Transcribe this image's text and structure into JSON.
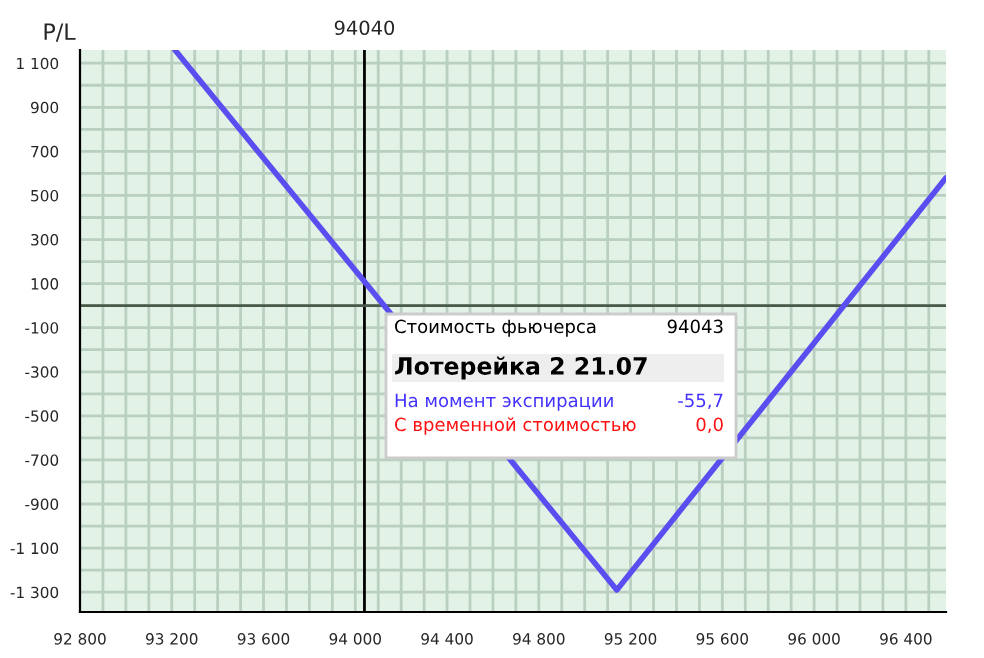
{
  "chart_data": {
    "type": "line",
    "ylabel": "P/L",
    "x": [
      93214,
      95140,
      96575
    ],
    "series": [
      {
        "color": "#5a4ef0",
        "values": [
          1160,
          -1290,
          580
        ]
      }
    ],
    "xlim": [
      92800,
      96575
    ],
    "ylim": [
      -1390,
      1160
    ],
    "xticks": [
      {
        "value": 92800,
        "label": "92 800"
      },
      {
        "value": 93200,
        "label": "93 200"
      },
      {
        "value": 93600,
        "label": "93 600"
      },
      {
        "value": 94000,
        "label": "94 000"
      },
      {
        "value": 94400,
        "label": "94 400"
      },
      {
        "value": 94800,
        "label": "94 800"
      },
      {
        "value": 95200,
        "label": "95 200"
      },
      {
        "value": 95600,
        "label": "95 600"
      },
      {
        "value": 96000,
        "label": "96 000"
      },
      {
        "value": 96400,
        "label": "96 400"
      }
    ],
    "yticks": [
      {
        "value": 1100,
        "label": "1 100"
      },
      900,
      700,
      500,
      300,
      100,
      -100,
      -300,
      -500,
      -700,
      -900,
      {
        "value": -1100,
        "label": "-1 100"
      },
      {
        "value": -1300,
        "label": "-1 300"
      }
    ],
    "grid": true,
    "marker": "none",
    "line_style": "solid",
    "ref_lines": [
      {
        "axis": "x",
        "value": 94040,
        "label": "94040",
        "color": "#000000"
      },
      {
        "axis": "y",
        "value": 0,
        "color": "#4a5a4a"
      }
    ],
    "annotations": [
      "Стоимость фьючерса",
      "94043",
      "Лотерейка 2 21.07",
      "На момент экспирации",
      "-55,7",
      "С временной стоимостью",
      "0,0"
    ]
  }
}
